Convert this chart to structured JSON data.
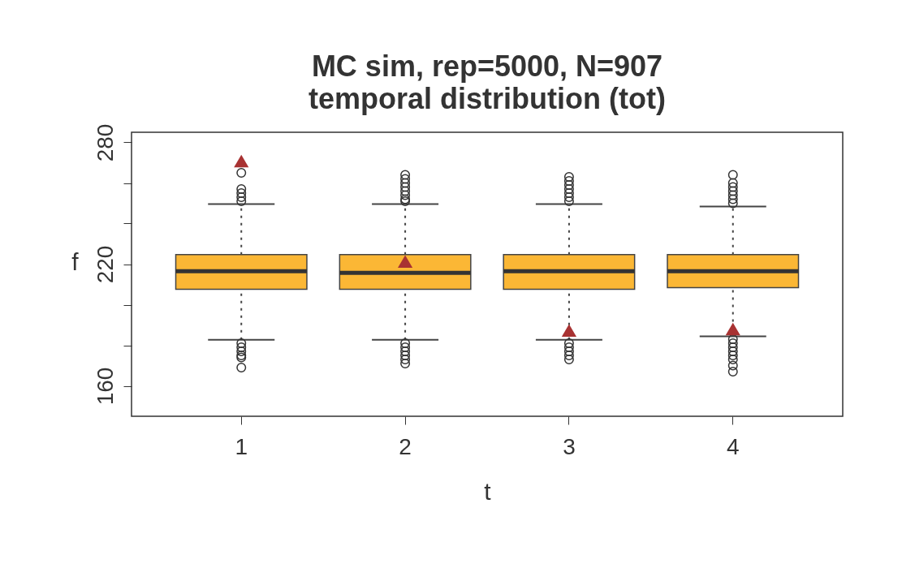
{
  "chart_data": {
    "type": "box",
    "title": "MC sim, rep=5000, N=907",
    "subtitle": "temporal distribution (tot)",
    "xlabel": "t",
    "ylabel": "f",
    "categories": [
      "1",
      "2",
      "3",
      "4"
    ],
    "ylim": [
      145,
      285
    ],
    "yticks": [
      160,
      {
        "value": 180,
        "label": null
      },
      {
        "value": 200,
        "label": null
      },
      220,
      {
        "value": 240,
        "label": null
      },
      {
        "value": 260,
        "label": null
      },
      280
    ],
    "series": [
      {
        "color": "#fbb735",
        "boxes": [
          {
            "low": 182.7,
            "q1": 207.6,
            "median": 216.5,
            "q3": 224.7,
            "high": 249.6,
            "outliers": [
              265,
              257,
              255,
              253,
              251,
              181,
              179,
              177,
              175,
              174,
              169
            ]
          },
          {
            "low": 182.7,
            "q1": 207.6,
            "median": 215.7,
            "q3": 224.7,
            "high": 249.6,
            "outliers": [
              264,
              262,
              260,
              258,
              256,
              254,
              252,
              251,
              181,
              179,
              177,
              175,
              173,
              171
            ]
          },
          {
            "low": 182.7,
            "q1": 207.6,
            "median": 216.5,
            "q3": 224.7,
            "high": 249.6,
            "outliers": [
              263,
              261,
              259,
              257,
              255,
              253,
              251,
              181,
              179,
              177,
              175,
              173
            ]
          },
          {
            "low": 184.4,
            "q1": 208.4,
            "median": 216.5,
            "q3": 224.7,
            "high": 248.4,
            "outliers": [
              264,
              260,
              258,
              256,
              254,
              252,
              250,
              183,
              181,
              179,
              177,
              175,
              173,
              170,
              167
            ]
          }
        ]
      },
      {
        "type": "scatter",
        "color": "#a83232",
        "marker": "triangle",
        "x": [
          "1",
          "2",
          "3",
          "4"
        ],
        "values": [
          270.8,
          221.3,
          187.3,
          188
        ]
      }
    ]
  }
}
